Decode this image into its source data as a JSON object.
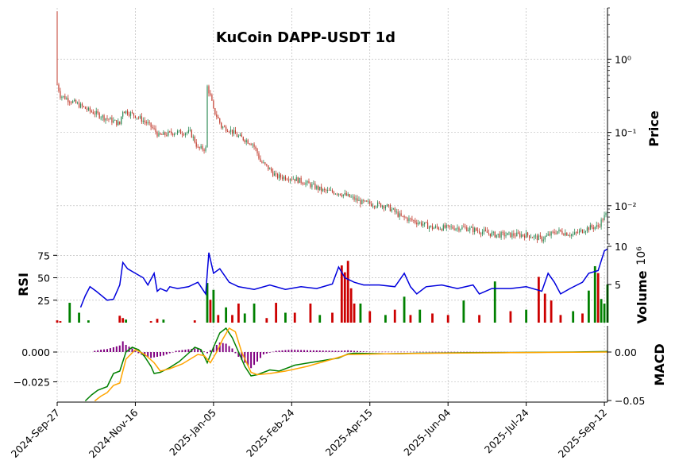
{
  "chart_data": {
    "type": "financial-multi-panel",
    "title": "KuCoin DAPP-USDT 1d",
    "x_dates": [
      "2024-Sep-27",
      "2024-Nov-16",
      "2025-Jan-05",
      "2025-Feb-24",
      "2025-Apr-15",
      "2025-Jun-04",
      "2025-Jul-24",
      "2025-Sep-12"
    ],
    "x_day_range": [
      0,
      352
    ],
    "price_panel": {
      "ylabel": "Price",
      "scale": "log",
      "ylim": [
        0.003,
        5
      ],
      "ticks": [
        {
          "value": 1,
          "label": "10⁰"
        },
        {
          "value": 0.1,
          "label": "10⁻¹"
        },
        {
          "value": 0.01,
          "label": "10⁻²"
        }
      ],
      "up_color": "#2e8b57",
      "down_color": "#c0392b",
      "keypoints": [
        [
          0,
          0.45
        ],
        [
          2,
          0.32
        ],
        [
          10,
          0.26
        ],
        [
          20,
          0.2
        ],
        [
          30,
          0.16
        ],
        [
          40,
          0.13
        ],
        [
          42,
          0.2
        ],
        [
          50,
          0.17
        ],
        [
          60,
          0.12
        ],
        [
          65,
          0.09
        ],
        [
          75,
          0.1
        ],
        [
          85,
          0.1
        ],
        [
          90,
          0.06
        ],
        [
          95,
          0.06
        ],
        [
          96,
          0.42
        ],
        [
          100,
          0.2
        ],
        [
          105,
          0.12
        ],
        [
          110,
          0.11
        ],
        [
          115,
          0.09
        ],
        [
          125,
          0.07
        ],
        [
          130,
          0.04
        ],
        [
          140,
          0.025
        ],
        [
          150,
          0.024
        ],
        [
          160,
          0.02
        ],
        [
          170,
          0.016
        ],
        [
          180,
          0.015
        ],
        [
          195,
          0.011
        ],
        [
          210,
          0.01
        ],
        [
          220,
          0.007
        ],
        [
          230,
          0.006
        ],
        [
          240,
          0.005
        ],
        [
          260,
          0.005
        ],
        [
          270,
          0.0045
        ],
        [
          280,
          0.004
        ],
        [
          300,
          0.004
        ],
        [
          310,
          0.0035
        ],
        [
          320,
          0.0045
        ],
        [
          330,
          0.004
        ],
        [
          340,
          0.005
        ],
        [
          346,
          0.0052
        ],
        [
          352,
          0.008
        ]
      ]
    },
    "rsi_panel": {
      "ylabel": "RSI",
      "ylim": [
        0,
        85
      ],
      "ticks": [
        25,
        50,
        75
      ],
      "color": "#0000dd",
      "keypoints": [
        [
          15,
          17
        ],
        [
          18,
          30
        ],
        [
          21,
          40
        ],
        [
          25,
          35
        ],
        [
          32,
          25
        ],
        [
          36,
          26
        ],
        [
          40,
          42
        ],
        [
          42,
          67
        ],
        [
          45,
          60
        ],
        [
          50,
          55
        ],
        [
          55,
          50
        ],
        [
          58,
          42
        ],
        [
          62,
          55
        ],
        [
          64,
          35
        ],
        [
          66,
          38
        ],
        [
          70,
          35
        ],
        [
          72,
          40
        ],
        [
          77,
          38
        ],
        [
          84,
          40
        ],
        [
          90,
          45
        ],
        [
          95,
          32
        ],
        [
          97,
          78
        ],
        [
          100,
          55
        ],
        [
          104,
          60
        ],
        [
          110,
          45
        ],
        [
          116,
          40
        ],
        [
          126,
          37
        ],
        [
          136,
          42
        ],
        [
          146,
          37
        ],
        [
          156,
          40
        ],
        [
          166,
          38
        ],
        [
          176,
          43
        ],
        [
          180,
          62
        ],
        [
          184,
          50
        ],
        [
          190,
          45
        ],
        [
          196,
          42
        ],
        [
          206,
          42
        ],
        [
          216,
          40
        ],
        [
          222,
          55
        ],
        [
          226,
          40
        ],
        [
          230,
          32
        ],
        [
          236,
          40
        ],
        [
          246,
          42
        ],
        [
          256,
          38
        ],
        [
          266,
          42
        ],
        [
          270,
          32
        ],
        [
          278,
          38
        ],
        [
          290,
          38
        ],
        [
          300,
          40
        ],
        [
          310,
          35
        ],
        [
          314,
          55
        ],
        [
          318,
          45
        ],
        [
          322,
          32
        ],
        [
          328,
          38
        ],
        [
          336,
          45
        ],
        [
          340,
          55
        ],
        [
          346,
          58
        ],
        [
          350,
          80
        ],
        [
          352,
          82
        ]
      ]
    },
    "volume_panel": {
      "ylabel": "Volume",
      "multiplier_label": "10⁶",
      "ylim": [
        0,
        10
      ],
      "ticks": [
        5,
        10
      ],
      "up_color": "#008000",
      "down_color": "#cc0000",
      "bars": [
        [
          0,
          0.3,
          0
        ],
        [
          2,
          0.2,
          0
        ],
        [
          8,
          2.6,
          1
        ],
        [
          14,
          1.3,
          1
        ],
        [
          20,
          0.3,
          1
        ],
        [
          40,
          0.9,
          0
        ],
        [
          42,
          0.6,
          0
        ],
        [
          44,
          0.4,
          1
        ],
        [
          60,
          0.2,
          0
        ],
        [
          64,
          0.5,
          0
        ],
        [
          68,
          0.4,
          1
        ],
        [
          88,
          0.3,
          0
        ],
        [
          96,
          5.2,
          1
        ],
        [
          98,
          3.0,
          0
        ],
        [
          100,
          4.3,
          1
        ],
        [
          103,
          1.0,
          0
        ],
        [
          108,
          2.0,
          1
        ],
        [
          112,
          1.0,
          0
        ],
        [
          116,
          2.5,
          0
        ],
        [
          120,
          1.2,
          1
        ],
        [
          126,
          2.5,
          1
        ],
        [
          134,
          0.6,
          0
        ],
        [
          140,
          2.6,
          0
        ],
        [
          146,
          1.3,
          1
        ],
        [
          152,
          1.3,
          0
        ],
        [
          162,
          2.5,
          0
        ],
        [
          168,
          1.0,
          1
        ],
        [
          176,
          1.3,
          0
        ],
        [
          182,
          7.5,
          0
        ],
        [
          184,
          6.6,
          0
        ],
        [
          186,
          8.1,
          0
        ],
        [
          188,
          4.5,
          0
        ],
        [
          190,
          2.5,
          0
        ],
        [
          194,
          2.5,
          1
        ],
        [
          200,
          1.5,
          0
        ],
        [
          210,
          1.0,
          1
        ],
        [
          216,
          1.7,
          0
        ],
        [
          222,
          3.4,
          1
        ],
        [
          226,
          1.0,
          0
        ],
        [
          232,
          1.7,
          1
        ],
        [
          240,
          1.2,
          0
        ],
        [
          250,
          1.0,
          0
        ],
        [
          260,
          2.9,
          1
        ],
        [
          270,
          1.0,
          0
        ],
        [
          280,
          5.4,
          1
        ],
        [
          290,
          1.5,
          0
        ],
        [
          300,
          1.7,
          1
        ],
        [
          308,
          6.0,
          0
        ],
        [
          312,
          3.8,
          0
        ],
        [
          316,
          2.9,
          0
        ],
        [
          322,
          1.0,
          0
        ],
        [
          330,
          1.5,
          1
        ],
        [
          336,
          1.2,
          0
        ],
        [
          340,
          4.2,
          1
        ],
        [
          344,
          7.4,
          1
        ],
        [
          346,
          6.5,
          0
        ],
        [
          348,
          3.1,
          1
        ],
        [
          350,
          2.5,
          1
        ],
        [
          352,
          5.0,
          1
        ]
      ]
    },
    "macd_panel": {
      "ylabel": "MACD",
      "ylim_left": [
        -0.042,
        0.022
      ],
      "ticks_left": [
        {
          "value": 0,
          "label": "0.000"
        },
        {
          "value": -0.025,
          "label": "−0.025"
        }
      ],
      "ticks_right": [
        {
          "value": 0,
          "label": "0.00"
        },
        {
          "value": -0.05,
          "label": "−0.05"
        }
      ],
      "macd_color": "#008000",
      "signal_color": "#ffa500",
      "hist_color": "#800080",
      "macd_keypoints": [
        [
          18,
          -0.041
        ],
        [
          22,
          -0.036
        ],
        [
          26,
          -0.032
        ],
        [
          32,
          -0.029
        ],
        [
          36,
          -0.018
        ],
        [
          40,
          -0.016
        ],
        [
          44,
          0.0
        ],
        [
          48,
          0.004
        ],
        [
          52,
          0.002
        ],
        [
          56,
          -0.004
        ],
        [
          60,
          -0.012
        ],
        [
          62,
          -0.018
        ],
        [
          66,
          -0.017
        ],
        [
          72,
          -0.013
        ],
        [
          78,
          -0.008
        ],
        [
          84,
          -0.001
        ],
        [
          88,
          0.004
        ],
        [
          92,
          0.002
        ],
        [
          96,
          -0.009
        ],
        [
          100,
          0.004
        ],
        [
          104,
          0.016
        ],
        [
          108,
          0.02
        ],
        [
          112,
          0.012
        ],
        [
          116,
          0.0
        ],
        [
          120,
          -0.012
        ],
        [
          124,
          -0.02
        ],
        [
          128,
          -0.019
        ],
        [
          136,
          -0.015
        ],
        [
          142,
          -0.016
        ],
        [
          152,
          -0.011
        ],
        [
          166,
          -0.008
        ],
        [
          180,
          -0.005
        ],
        [
          186,
          -0.0015
        ],
        [
          190,
          -0.001
        ],
        [
          210,
          -0.0015
        ],
        [
          230,
          -0.001
        ],
        [
          260,
          -0.0006
        ],
        [
          290,
          -0.0004
        ],
        [
          330,
          0.0
        ],
        [
          352,
          0.0005
        ]
      ],
      "signal_keypoints": [
        [
          24,
          -0.041
        ],
        [
          28,
          -0.037
        ],
        [
          32,
          -0.034
        ],
        [
          36,
          -0.028
        ],
        [
          40,
          -0.026
        ],
        [
          44,
          -0.006
        ],
        [
          50,
          0.002
        ],
        [
          56,
          -0.002
        ],
        [
          62,
          -0.009
        ],
        [
          66,
          -0.016
        ],
        [
          72,
          -0.014
        ],
        [
          80,
          -0.01
        ],
        [
          90,
          -0.002
        ],
        [
          94,
          -0.003
        ],
        [
          98,
          -0.009
        ],
        [
          102,
          0.0
        ],
        [
          106,
          0.011
        ],
        [
          110,
          0.02
        ],
        [
          114,
          0.017
        ],
        [
          118,
          0.0
        ],
        [
          124,
          -0.017
        ],
        [
          128,
          -0.019
        ],
        [
          136,
          -0.018
        ],
        [
          146,
          -0.016
        ],
        [
          160,
          -0.012
        ],
        [
          176,
          -0.006
        ],
        [
          186,
          -0.002
        ],
        [
          190,
          -0.002
        ],
        [
          210,
          -0.0015
        ],
        [
          240,
          -0.001
        ],
        [
          290,
          -0.0005
        ],
        [
          352,
          0.0
        ]
      ],
      "hist_keypoints": [
        [
          24,
          0.001
        ],
        [
          28,
          0.002
        ],
        [
          32,
          0.0025
        ],
        [
          36,
          0.004
        ],
        [
          40,
          0.0055
        ],
        [
          42,
          0.009
        ],
        [
          44,
          0.006
        ],
        [
          48,
          0.003
        ],
        [
          52,
          -0.001
        ],
        [
          56,
          -0.0035
        ],
        [
          60,
          -0.005
        ],
        [
          64,
          -0.004
        ],
        [
          68,
          -0.003
        ],
        [
          72,
          -0.001
        ],
        [
          76,
          0.001
        ],
        [
          82,
          0.002
        ],
        [
          88,
          0.003
        ],
        [
          92,
          0.002
        ],
        [
          96,
          -0.001
        ],
        [
          100,
          0.004
        ],
        [
          104,
          0.008
        ],
        [
          108,
          0.007
        ],
        [
          112,
          0.003
        ],
        [
          114,
          -0.001
        ],
        [
          116,
          -0.004
        ],
        [
          120,
          -0.009
        ],
        [
          124,
          -0.0135
        ],
        [
          128,
          -0.008
        ],
        [
          132,
          -0.002
        ],
        [
          140,
          0.001
        ],
        [
          150,
          0.002
        ],
        [
          160,
          0.0015
        ],
        [
          180,
          0.001
        ],
        [
          186,
          0.0015
        ],
        [
          190,
          0.001
        ],
        [
          200,
          0.0003
        ],
        [
          352,
          0.0
        ]
      ]
    },
    "grid": true
  }
}
